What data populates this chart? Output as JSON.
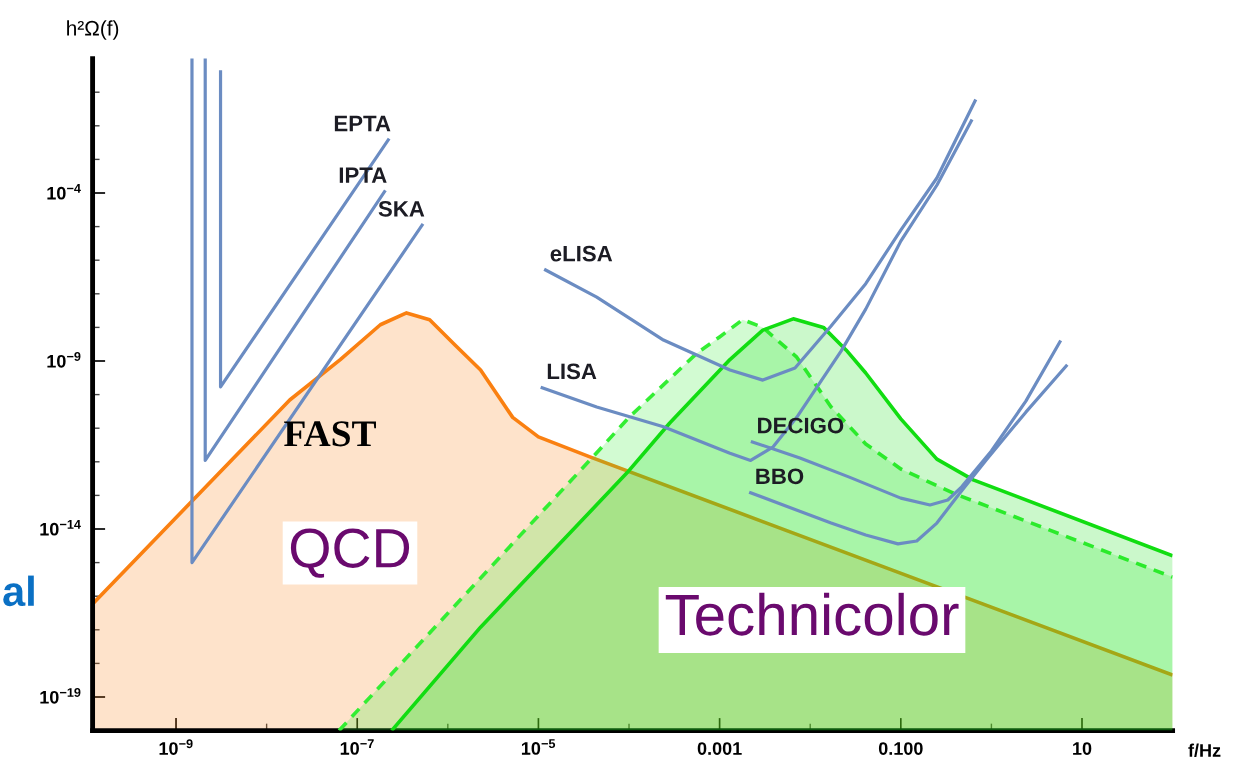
{
  "chart_data": {
    "type": "line",
    "log": "xy",
    "xlabel": "f/Hz",
    "ylabel": "h²Ω(f)",
    "xlim": [
      1.2e-10,
      100
    ],
    "ylim": [
      1e-20,
      1
    ],
    "xticks": [
      {
        "value": 1e-09,
        "label": "10$^{−9}$"
      },
      {
        "value": 1e-08,
        "label": null
      },
      {
        "value": 1e-07,
        "label": "10$^{−7}$"
      },
      {
        "value": 1e-06,
        "label": null
      },
      {
        "value": 1e-05,
        "label": "10$^{−5}$"
      },
      {
        "value": 0.0001,
        "label": null
      },
      0.001,
      {
        "value": 0.01,
        "label": null
      },
      {
        "value": 0.1,
        "label": "0.100"
      },
      {
        "value": 1,
        "label": null
      },
      10
    ],
    "yticks": [
      {
        "value": 0.1,
        "label": null
      },
      {
        "value": 0.01,
        "label": null
      },
      {
        "value": 0.001,
        "label": null
      },
      {
        "value": 0.0001,
        "label": "10$^{−4}$"
      },
      {
        "value": 1e-05,
        "label": null
      },
      {
        "value": 1e-06,
        "label": null
      },
      {
        "value": 1e-07,
        "label": null
      },
      {
        "value": 1e-08,
        "label": null
      },
      {
        "value": 1e-09,
        "label": "10$^{−9}$"
      },
      {
        "value": 1e-10,
        "label": null
      },
      {
        "value": 1e-11,
        "label": null
      },
      {
        "value": 1e-12,
        "label": null
      },
      {
        "value": 1e-13,
        "label": null
      },
      {
        "value": 1e-14,
        "label": "10$^{−14}$"
      },
      {
        "value": 1e-15,
        "label": null
      },
      {
        "value": 1e-16,
        "label": null
      },
      {
        "value": 1e-17,
        "label": null
      },
      {
        "value": 1e-18,
        "label": null
      },
      {
        "value": 1e-19,
        "label": "10$^{−19}$"
      }
    ],
    "series": [
      {
        "type": "area",
        "color": "#fa8011",
        "x": [
          1.2e-10,
          1.8e-08,
          6.5e-08,
          1.8e-07,
          3.5e-07,
          6.3e-07,
          1.2e-06,
          2.3e-06,
          5.2e-06,
          1e-05,
          3.7e-05,
          100
        ],
        "values": [
          5.9e-17,
          6.9e-11,
          1.1e-09,
          1.2e-08,
          2.7e-08,
          1.7e-08,
          3e-09,
          5.4e-10,
          2.1e-11,
          5.5e-12,
          1.4e-12,
          4.5e-19
        ]
      },
      {
        "type": "area",
        "color": "#33ee33",
        "line_style": "dashed",
        "x": [
          6.3e-08,
          4e-05,
          0.0001,
          0.00056,
          0.001,
          0.0018,
          0.003,
          0.0071,
          0.017,
          0.041,
          0.1,
          0.4,
          100
        ],
        "values": [
          1e-20,
          1.4e-12,
          2.1e-11,
          1.7e-09,
          5.2e-09,
          1.7e-08,
          1e-08,
          1.3e-09,
          4.3e-11,
          3.4e-12,
          6.1e-13,
          1.1e-13,
          3.7e-16
        ]
      },
      {
        "type": "area",
        "color": "#11dd11",
        "x": [
          2.4e-07,
          2.3e-06,
          9.5e-05,
          0.00028,
          0.0013,
          0.003,
          0.0065,
          0.014,
          0.025,
          0.041,
          0.1,
          0.25,
          0.63,
          100
        ],
        "values": [
          1e-20,
          1.2e-17,
          4.7e-13,
          1.4e-11,
          1.1e-09,
          8.3e-09,
          1.8e-08,
          1e-08,
          2.1e-09,
          4.4e-10,
          1.9e-11,
          1.2e-12,
          2.9e-13,
          1.6e-15
        ]
      },
      {
        "name": "EPTA",
        "color": "#6b8cc2",
        "x": [
          2.2e-07,
          3.1e-09,
          3.1e-09
        ],
        "values": [
          0.0038,
          1.7e-10,
          0.4
        ]
      },
      {
        "name": "IPTA",
        "color": "#6b8cc2",
        "x": [
          2e-07,
          2.1e-09,
          2.1e-09
        ],
        "values": [
          0.00011,
          1.1e-12,
          1
        ]
      },
      {
        "name": "SKA",
        "color": "#6b8cc2",
        "x": [
          5.2e-07,
          1.5e-09,
          1.5e-09
        ],
        "values": [
          1.1e-05,
          1e-15,
          1
        ]
      },
      {
        "name": "eLISA",
        "color": "#6b8cc2",
        "x": [
          1.2e-05,
          4.4e-05,
          0.00024,
          0.0013,
          0.003,
          0.0068,
          0.017,
          0.041,
          0.1,
          0.25,
          0.66
        ],
        "values": [
          5.1e-07,
          8e-08,
          4.2e-09,
          5.4e-10,
          2.7e-10,
          6.2e-10,
          1.1e-08,
          2e-07,
          7.9e-06,
          0.00028,
          0.055
        ]
      },
      {
        "name": "LISA",
        "color": "#6b8cc2",
        "x": [
          1.1e-05,
          4.4e-05,
          0.00024,
          0.0013,
          0.0022,
          0.0039,
          0.0071,
          0.022,
          0.041,
          0.1,
          0.25,
          0.6
        ],
        "values": [
          1.6e-10,
          4.3e-11,
          1.1e-11,
          1.8e-12,
          1.1e-12,
          2.8e-12,
          2.1e-11,
          2e-09,
          3.5e-08,
          3.7e-06,
          0.00017,
          0.014
        ]
      },
      {
        "name": "DECIGO",
        "color": "#6b8cc2",
        "x": [
          0.0023,
          0.0077,
          0.027,
          0.1,
          0.21,
          0.33,
          0.47,
          1.0,
          2.4,
          5.7
        ],
        "values": [
          3.9e-12,
          1.3e-12,
          3.5e-13,
          8.3e-14,
          5.2e-14,
          7.3e-14,
          1.8e-13,
          2.1e-12,
          6.4e-11,
          3.7e-09
        ]
      },
      {
        "name": "BBO",
        "color": "#6b8cc2",
        "x": [
          0.0022,
          0.017,
          0.041,
          0.093,
          0.15,
          0.25,
          0.44,
          0.89,
          2.4,
          6.7
        ],
        "values": [
          1.2e-13,
          1.5e-14,
          6.6e-15,
          3.6e-15,
          4.4e-15,
          1.5e-14,
          1.1e-13,
          1.2e-12,
          3e-11,
          7.1e-10
        ]
      }
    ],
    "annotations": [
      "FAST",
      "QCD",
      "Technicolor",
      "al"
    ]
  }
}
